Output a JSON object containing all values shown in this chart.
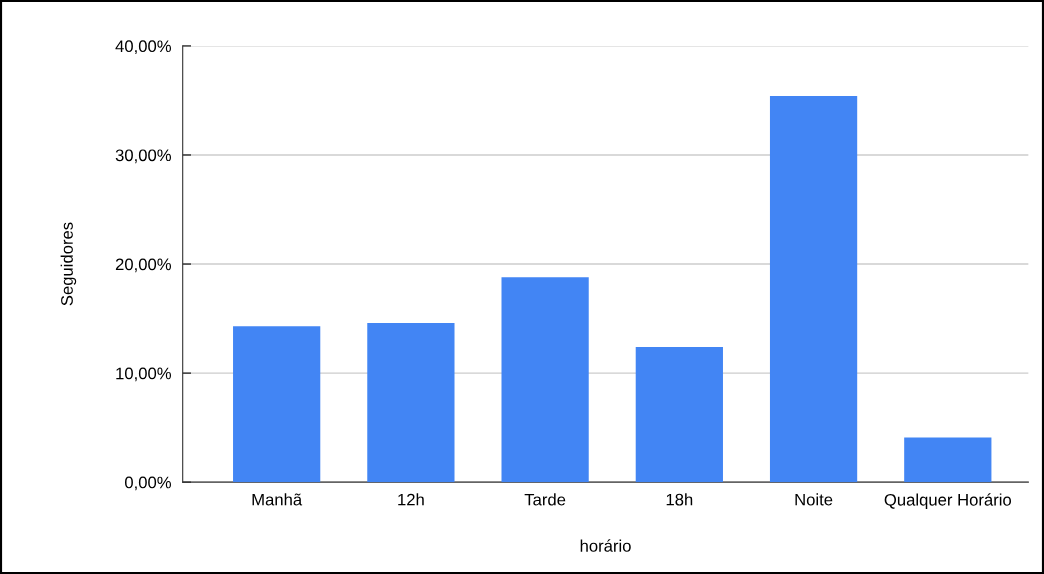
{
  "chart_data": {
    "type": "bar",
    "xlabel": "horário",
    "ylabel": "Seguidores",
    "categories": [
      "Manhã",
      "12h",
      "Tarde",
      "18h",
      "Noite",
      "Qualquer Horário"
    ],
    "values": [
      14.3,
      14.6,
      18.8,
      12.4,
      35.4,
      4.1
    ],
    "color": "#4285f4",
    "ylim": [
      0,
      40
    ],
    "yticks": [
      {
        "value": 0,
        "label": "0,00%"
      },
      {
        "value": 10,
        "label": "10,00%"
      },
      {
        "value": 20,
        "label": "20,00%"
      },
      {
        "value": 30,
        "label": "30,00%"
      },
      {
        "value": 40,
        "label": "40,00%"
      }
    ],
    "grid": "y"
  }
}
